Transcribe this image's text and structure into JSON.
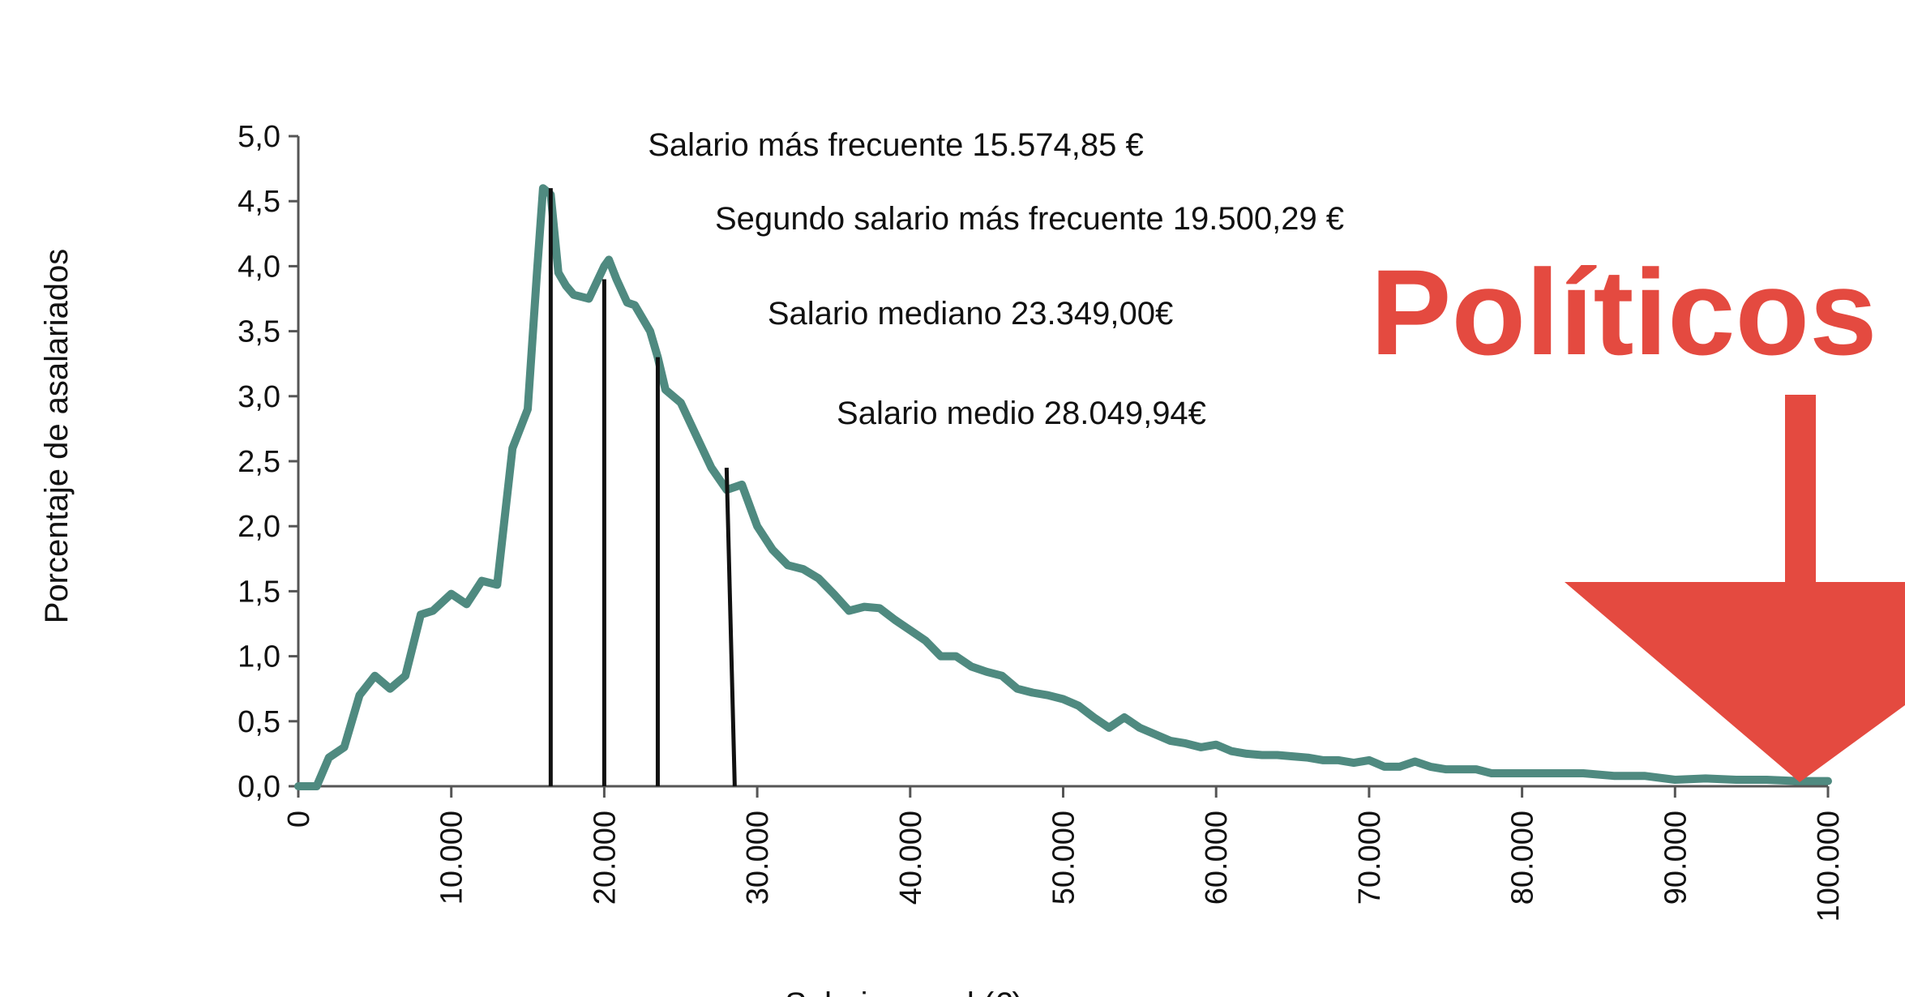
{
  "chart_data": {
    "type": "line",
    "title": "",
    "xlabel": "Salario anual (€)",
    "ylabel": "Porcentaje de asalariados",
    "xlim": [
      0,
      100000
    ],
    "ylim": [
      0,
      5
    ],
    "x_ticks": [
      0,
      10000,
      20000,
      30000,
      40000,
      50000,
      60000,
      70000,
      80000,
      90000,
      100000
    ],
    "x_tick_labels": [
      "0",
      "10.000",
      "20.000",
      "30.000",
      "40.000",
      "50.000",
      "60.000",
      "70.000",
      "80.000",
      "90.000",
      "100.000"
    ],
    "y_ticks": [
      0,
      0.5,
      1,
      1.5,
      2,
      2.5,
      3,
      3.5,
      4,
      4.5,
      5
    ],
    "y_tick_labels": [
      "0,0",
      "0,5",
      "1,0",
      "1,5",
      "2,0",
      "2,5",
      "3,0",
      "3,5",
      "4,0",
      "4,5",
      "5,0"
    ],
    "grid": false,
    "line_color": "#4f8a80",
    "series": [
      {
        "name": "",
        "x": [
          0,
          1200,
          2000,
          3000,
          4000,
          5000,
          6000,
          7000,
          8000,
          8800,
          10000,
          11000,
          12000,
          13000,
          14000,
          14500,
          15000,
          15600,
          16000,
          16500,
          17000,
          17500,
          18000,
          19000,
          20000,
          20300,
          20800,
          21500,
          22000,
          23000,
          23500,
          24000,
          25000,
          26000,
          27000,
          28000,
          29000,
          30000,
          31000,
          32000,
          33000,
          34000,
          35000,
          36000,
          37000,
          38000,
          39000,
          40000,
          41000,
          42000,
          43000,
          44000,
          45000,
          46000,
          47000,
          48000,
          49000,
          50000,
          51000,
          52000,
          53000,
          54000,
          55000,
          56000,
          57000,
          58000,
          59000,
          60000,
          61000,
          62000,
          63000,
          64000,
          65000,
          66000,
          67000,
          68000,
          69000,
          70000,
          71000,
          72000,
          73000,
          74000,
          75000,
          76000,
          77000,
          78000,
          79000,
          80000,
          82000,
          84000,
          86000,
          88000,
          90000,
          92000,
          94000,
          96000,
          98000,
          100000
        ],
        "values": [
          0.0,
          0.0,
          0.22,
          0.3,
          0.7,
          0.85,
          0.75,
          0.85,
          1.32,
          1.35,
          1.48,
          1.4,
          1.58,
          1.55,
          2.6,
          2.75,
          2.9,
          3.95,
          4.6,
          4.55,
          3.95,
          3.85,
          3.78,
          3.75,
          4.0,
          4.05,
          3.9,
          3.72,
          3.7,
          3.5,
          3.3,
          3.05,
          2.95,
          2.7,
          2.45,
          2.28,
          2.32,
          2.0,
          1.82,
          1.7,
          1.67,
          1.6,
          1.48,
          1.35,
          1.38,
          1.37,
          1.28,
          1.2,
          1.12,
          1.0,
          1.0,
          0.92,
          0.88,
          0.85,
          0.75,
          0.72,
          0.7,
          0.67,
          0.62,
          0.53,
          0.45,
          0.53,
          0.45,
          0.4,
          0.35,
          0.33,
          0.3,
          0.32,
          0.27,
          0.25,
          0.24,
          0.24,
          0.23,
          0.22,
          0.2,
          0.2,
          0.18,
          0.2,
          0.15,
          0.15,
          0.19,
          0.15,
          0.13,
          0.13,
          0.13,
          0.1,
          0.1,
          0.1,
          0.1,
          0.1,
          0.08,
          0.08,
          0.05,
          0.06,
          0.05,
          0.05,
          0.04,
          0.04
        ]
      }
    ],
    "markers": [
      {
        "x": 16500,
        "top": 4.6,
        "label": "Salario más frecuente 15.574,85 €"
      },
      {
        "x": 20000,
        "top": 3.9,
        "label": "Segundo salario más frecuente 19.500,29 €"
      },
      {
        "x": 23500,
        "top": 3.3,
        "label": "Salario mediano 23.349,00€"
      },
      {
        "x": 28000,
        "top": 2.45,
        "label": "Salario medio 28.049,94€"
      }
    ],
    "overlay": {
      "label": "Políticos",
      "color": "#e44a40",
      "arrow_target_x": 98500
    }
  }
}
